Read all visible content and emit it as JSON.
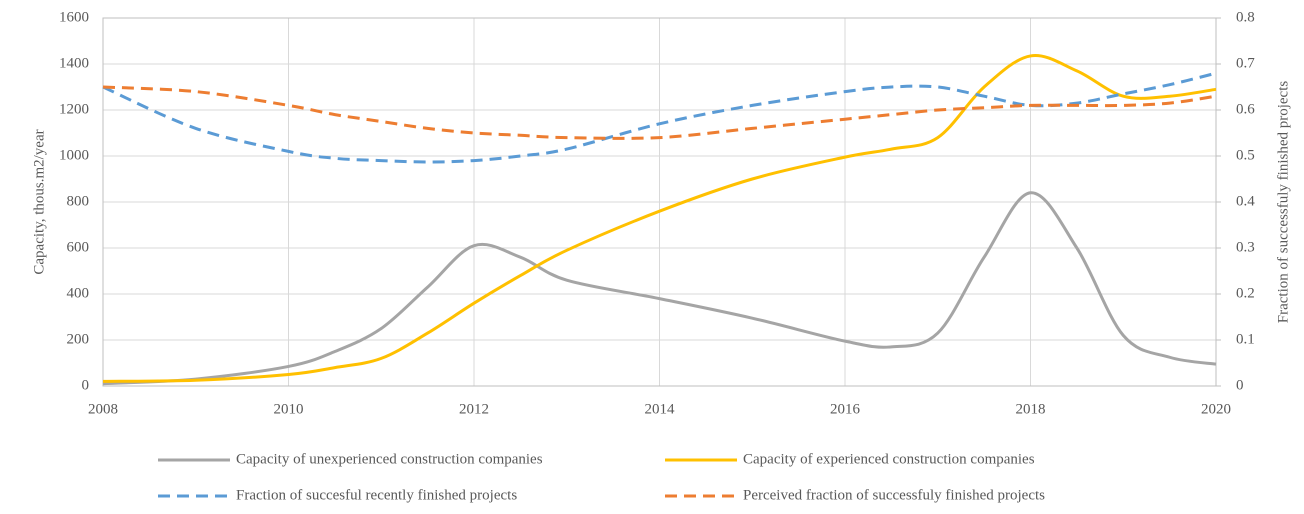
{
  "chart_data": {
    "type": "line",
    "x": [
      2008,
      2009,
      2010,
      2010.5,
      2011,
      2011.5,
      2012,
      2012.5,
      2013,
      2014,
      2015,
      2016,
      2016.5,
      2017,
      2017.5,
      2018,
      2018.5,
      2019,
      2019.5,
      2020
    ],
    "series": [
      {
        "name": "Capacity of unexperienced construction companies",
        "color": "#a5a5a5",
        "dash": false,
        "values": [
          10,
          30,
          85,
          150,
          250,
          430,
          610,
          560,
          460,
          380,
          295,
          195,
          170,
          230,
          560,
          840,
          600,
          220,
          125,
          95
        ]
      },
      {
        "name": "Capacity of experienced construction companies",
        "color": "#ffc000",
        "dash": false,
        "values": [
          20,
          25,
          50,
          80,
          120,
          230,
          360,
          480,
          590,
          760,
          900,
          995,
          1030,
          1080,
          1300,
          1435,
          1370,
          1260,
          1260,
          1290
        ]
      },
      {
        "name": "Fraction of succesful recently finished projects",
        "color": "#5b9bd5",
        "dash": true,
        "axis": "y2",
        "values": [
          0.65,
          0.56,
          0.51,
          0.495,
          0.49,
          0.487,
          0.49,
          0.5,
          0.515,
          0.57,
          0.61,
          0.64,
          0.65,
          0.65,
          0.63,
          0.61,
          0.615,
          0.635,
          0.655,
          0.68
        ]
      },
      {
        "name": "Perceived fraction of successfuly finished projects",
        "color": "#ed7d31",
        "dash": true,
        "axis": "y2",
        "values": [
          0.65,
          0.64,
          0.61,
          0.59,
          0.575,
          0.56,
          0.55,
          0.545,
          0.54,
          0.54,
          0.56,
          0.58,
          0.59,
          0.6,
          0.605,
          0.61,
          0.61,
          0.61,
          0.615,
          0.63
        ]
      }
    ],
    "y_label": "Capacity, thous.m2/year",
    "y2_label": "Fraction of successfuly finished projects",
    "xlim": [
      2008,
      2020
    ],
    "xticks": [
      2008,
      2010,
      2012,
      2014,
      2016,
      2018,
      2020
    ],
    "ylim": [
      0,
      1600
    ],
    "yticks": [
      0,
      200,
      400,
      600,
      800,
      1000,
      1200,
      1400,
      1600
    ],
    "y2lim": [
      0,
      0.8
    ],
    "y2ticks": [
      0,
      0.1,
      0.2,
      0.3,
      0.4,
      0.5,
      0.6,
      0.7,
      0.8
    ],
    "grid": true,
    "legend": "bottom"
  }
}
